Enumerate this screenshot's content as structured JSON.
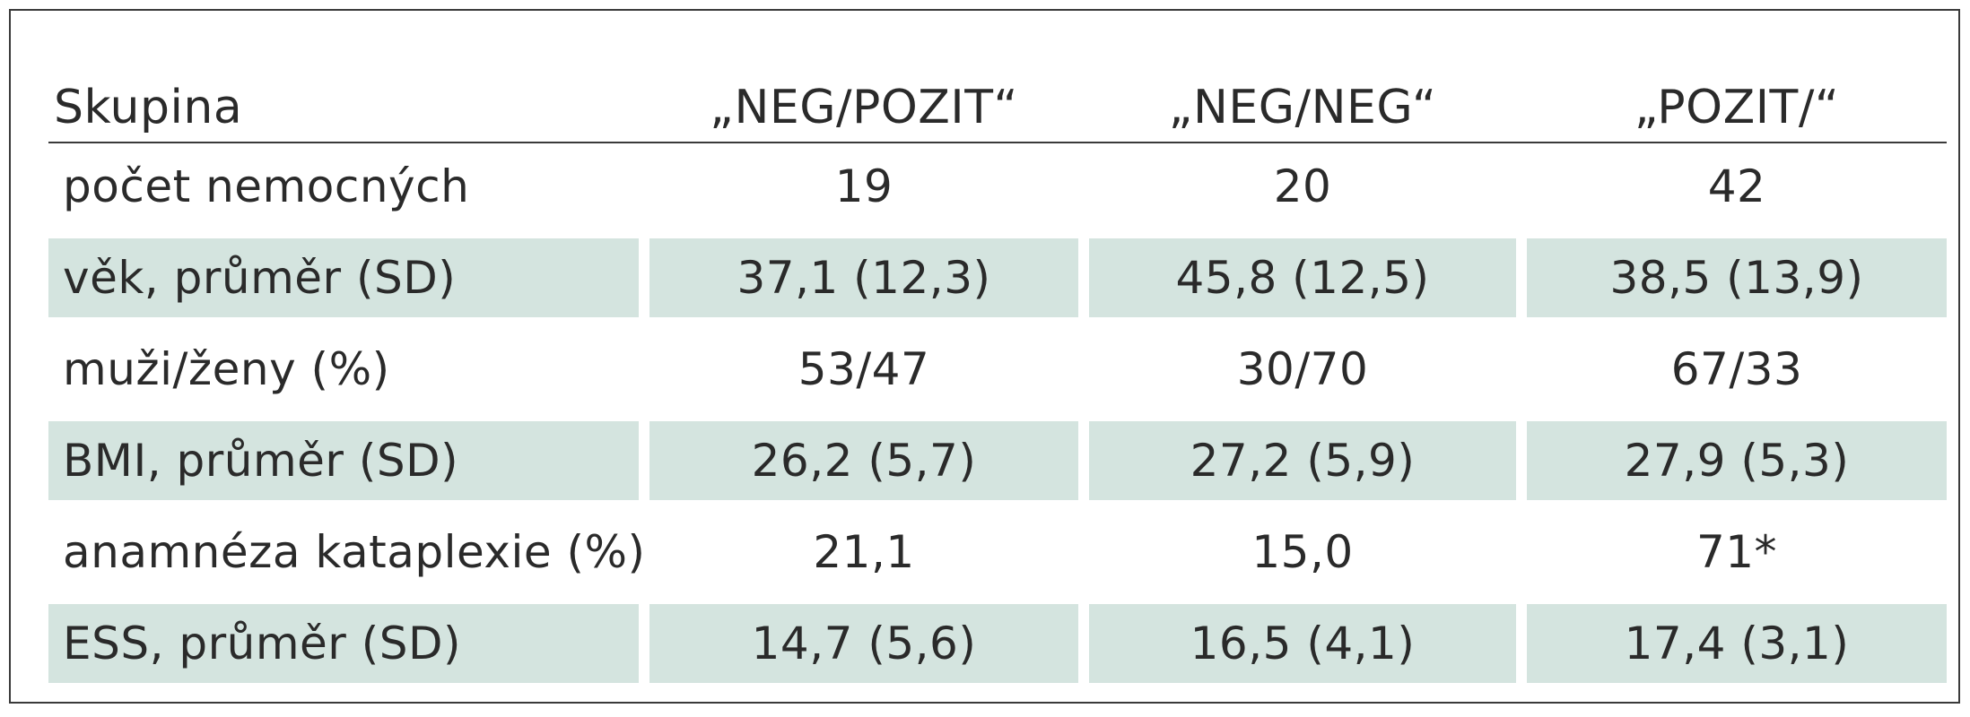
{
  "table": {
    "header": [
      "Skupina",
      "„NEG/POZIT“",
      "„NEG/NEG“",
      "„POZIT/“"
    ],
    "rows": [
      [
        "počet nemocných",
        "19",
        "20",
        "42"
      ],
      [
        "věk, průměr (SD)",
        "37,1 (12,3)",
        "45,8 (12,5)",
        "38,5 (13,9)"
      ],
      [
        "muži/ženy (%)",
        "53/47",
        "30/70",
        "67/33"
      ],
      [
        "BMI, průměr (SD)",
        "26,2 (5,7)",
        "27,2 (5,9)",
        "27,9 (5,3)"
      ],
      [
        "anamnéza kataplexie (%)",
        "21,1",
        "15,0",
        "71*"
      ],
      [
        "ESS, průměr (SD)",
        "14,7 (5,6)",
        "16,5 (4,1)",
        "17,4 (3,1)"
      ]
    ],
    "shade_color": "#d4e4df"
  }
}
